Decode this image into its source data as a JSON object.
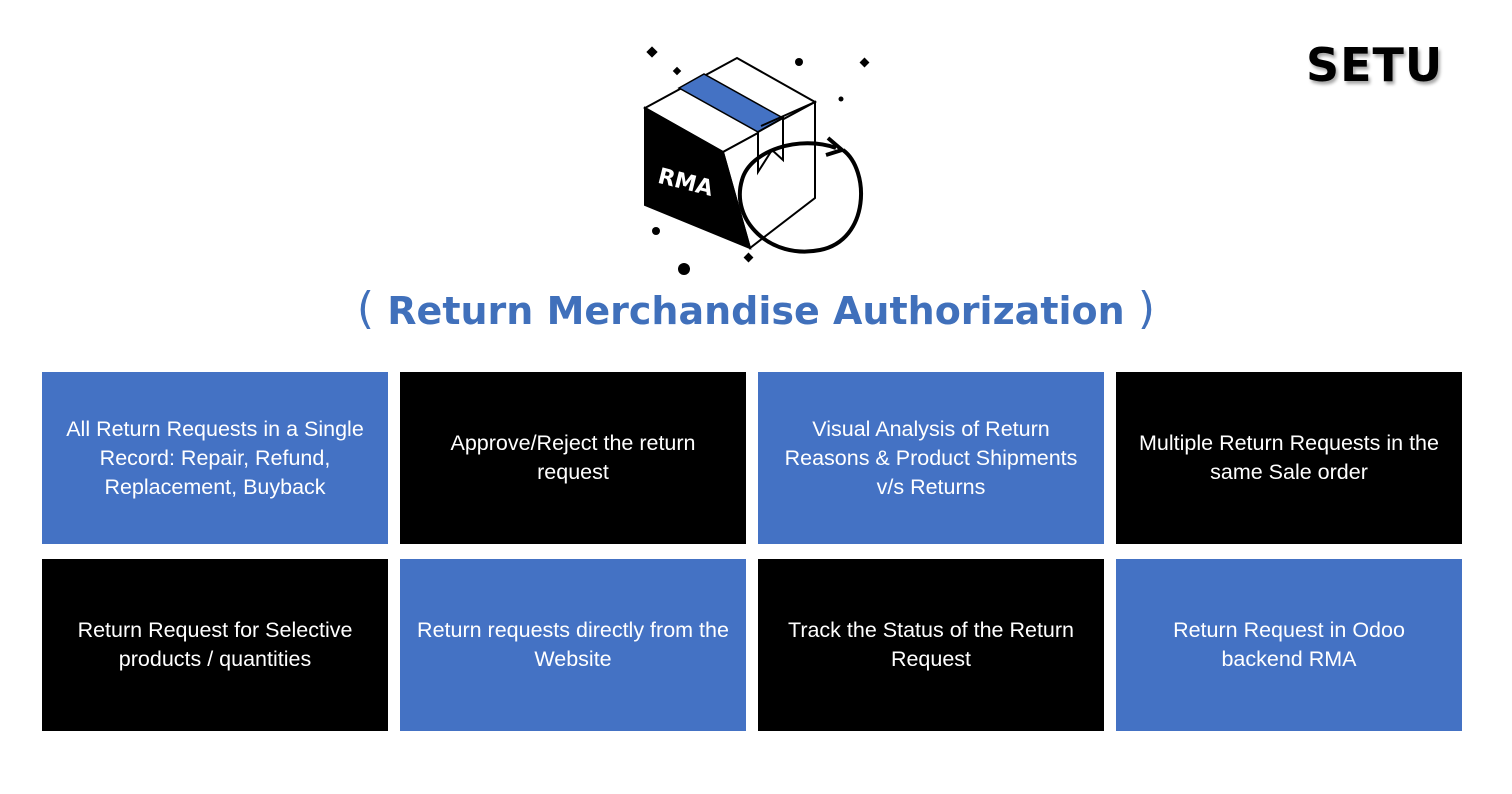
{
  "brand": {
    "logo_text": "SETU"
  },
  "hero": {
    "box_label": "RMA",
    "icon": "box-return-icon"
  },
  "title": {
    "open_paren": "(",
    "text": "Return Merchandise Authorization",
    "close_paren": ")"
  },
  "colors": {
    "blue": "#4472c4",
    "black": "#000000",
    "title": "#4070bb"
  },
  "features": [
    {
      "text": "All Return Requests in a Single Record: Repair, Refund, Replacement, Buyback",
      "color": "blue"
    },
    {
      "text": "Approve/Reject the return request",
      "color": "black"
    },
    {
      "text": "Visual Analysis of Return Reasons & Product Shipments v/s Returns",
      "color": "blue"
    },
    {
      "text": "Multiple Return Requests in the same Sale order",
      "color": "black"
    },
    {
      "text": "Return Request for Selective products / quantities",
      "color": "black"
    },
    {
      "text": "Return requests directly from the Website",
      "color": "blue"
    },
    {
      "text": "Track the Status of the Return Request",
      "color": "black"
    },
    {
      "text": "Return Request in Odoo backend RMA",
      "color": "blue"
    }
  ]
}
